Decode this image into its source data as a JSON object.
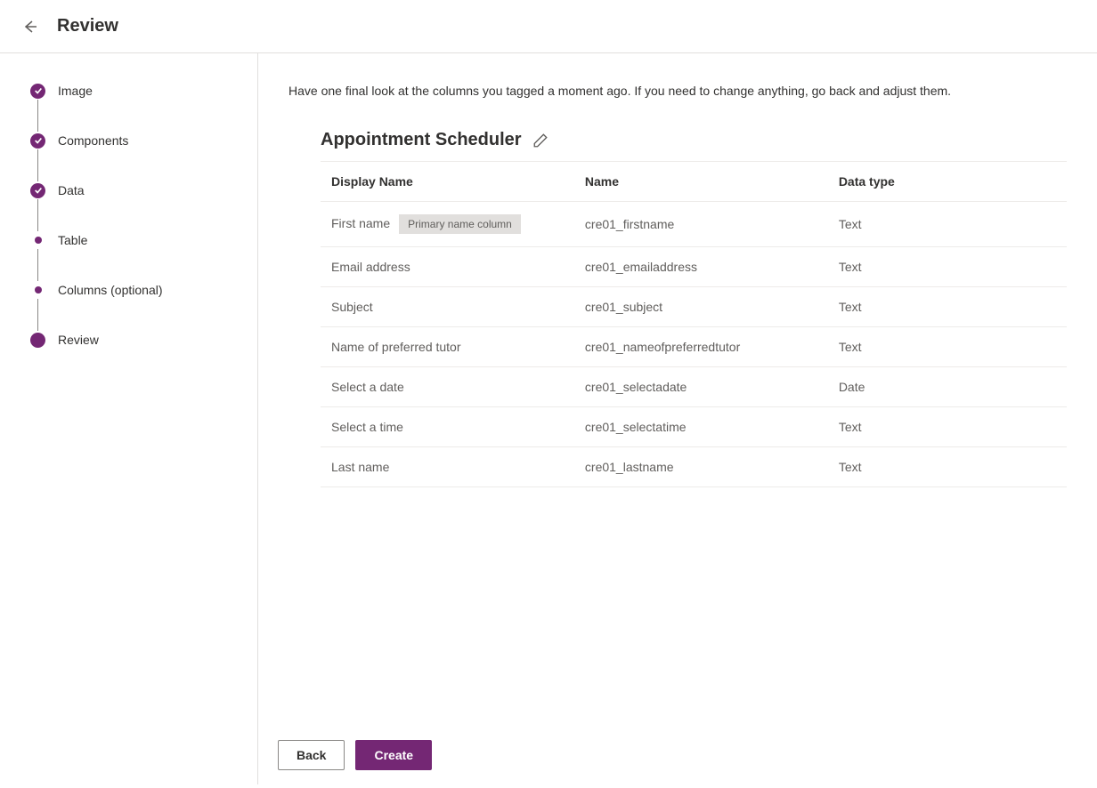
{
  "header": {
    "title": "Review"
  },
  "stepper": {
    "steps": [
      {
        "label": "Image",
        "state": "complete"
      },
      {
        "label": "Components",
        "state": "complete"
      },
      {
        "label": "Data",
        "state": "complete"
      },
      {
        "label": "Table",
        "state": "sub"
      },
      {
        "label": "Columns (optional)",
        "state": "sub"
      },
      {
        "label": "Review",
        "state": "current"
      }
    ]
  },
  "main": {
    "intro": "Have one final look at the columns you tagged a moment ago. If you need to change anything, go back and adjust them.",
    "section_title": "Appointment Scheduler",
    "table": {
      "headers": {
        "display": "Display Name",
        "name": "Name",
        "type": "Data type"
      },
      "rows": [
        {
          "display": "First name",
          "badge": "Primary name column",
          "name": "cre01_firstname",
          "type": "Text"
        },
        {
          "display": "Email address",
          "badge": "",
          "name": "cre01_emailaddress",
          "type": "Text"
        },
        {
          "display": "Subject",
          "badge": "",
          "name": "cre01_subject",
          "type": "Text"
        },
        {
          "display": "Name of preferred tutor",
          "badge": "",
          "name": "cre01_nameofpreferredtutor",
          "type": "Text"
        },
        {
          "display": "Select a date",
          "badge": "",
          "name": "cre01_selectadate",
          "type": "Date"
        },
        {
          "display": "Select a time",
          "badge": "",
          "name": "cre01_selectatime",
          "type": "Text"
        },
        {
          "display": "Last name",
          "badge": "",
          "name": "cre01_lastname",
          "type": "Text"
        }
      ]
    }
  },
  "footer": {
    "back": "Back",
    "create": "Create"
  },
  "colors": {
    "accent": "#742774",
    "border": "#e1dfdd",
    "text": "#323130",
    "muted": "#605e5c",
    "badge_bg": "#e1dfdd"
  }
}
